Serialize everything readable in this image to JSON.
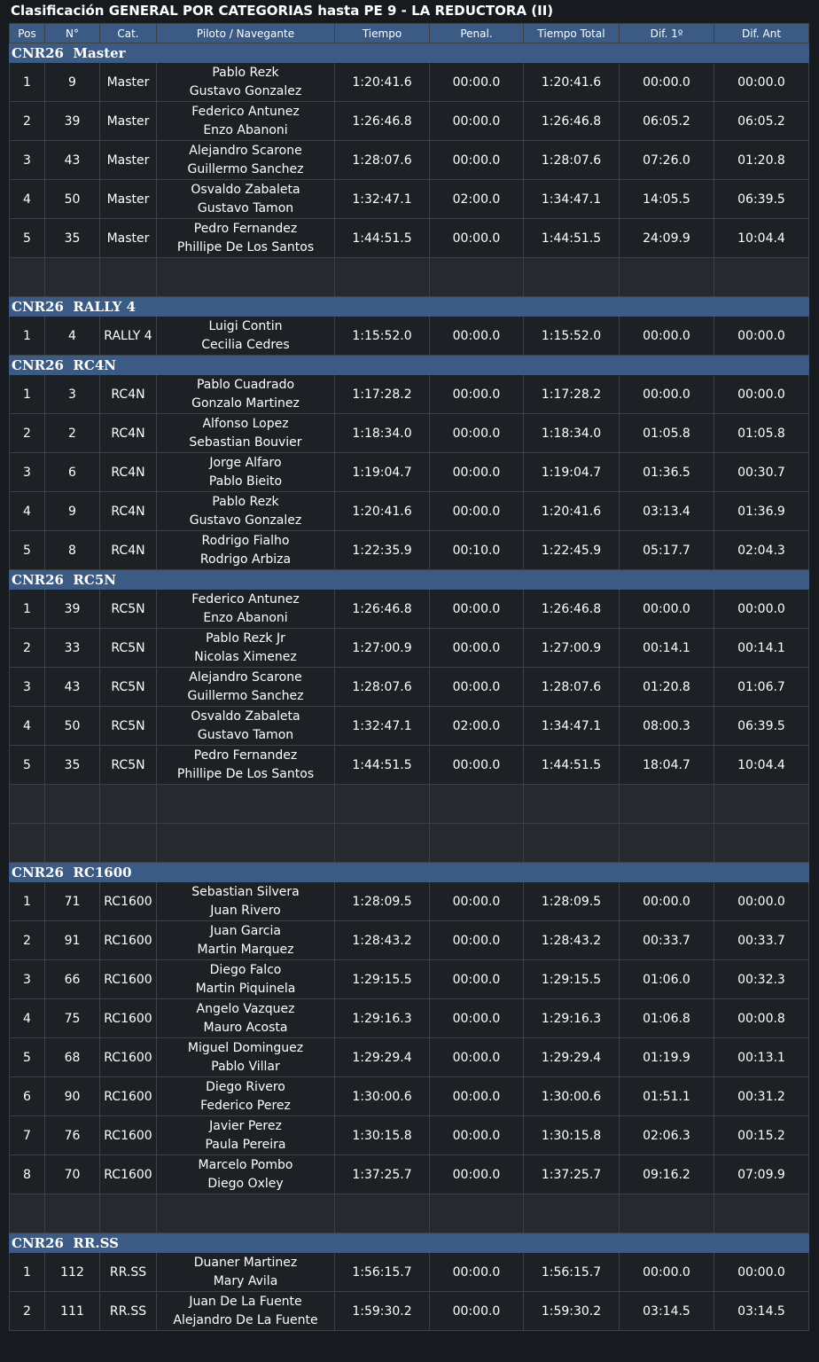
{
  "title": "Clasificación GENERAL POR CATEGORIAS hasta PE 9 - LA REDUCTORA (II)",
  "columns": [
    "Pos",
    "N°",
    "Cat.",
    "Piloto / Navegante",
    "Tiempo",
    "Penal.",
    "Tiempo Total",
    "Dif. 1º",
    "Dif. Ant"
  ],
  "categories": [
    {
      "name": "CNR26  Master",
      "blank_rows": 1,
      "rows": [
        {
          "pos": "1",
          "num": "9",
          "cat": "Master",
          "driver": "Pablo Rezk",
          "navigator": "Gustavo Gonzalez",
          "time": "1:20:41.6",
          "penalty": "00:00.0",
          "total": "1:20:41.6",
          "dif_first": "00:00.0",
          "dif_prev": "00:00.0"
        },
        {
          "pos": "2",
          "num": "39",
          "cat": "Master",
          "driver": "Federico Antunez",
          "navigator": "Enzo Abanoni",
          "time": "1:26:46.8",
          "penalty": "00:00.0",
          "total": "1:26:46.8",
          "dif_first": "06:05.2",
          "dif_prev": "06:05.2"
        },
        {
          "pos": "3",
          "num": "43",
          "cat": "Master",
          "driver": "Alejandro Scarone",
          "navigator": "Guillermo Sanchez",
          "time": "1:28:07.6",
          "penalty": "00:00.0",
          "total": "1:28:07.6",
          "dif_first": "07:26.0",
          "dif_prev": "01:20.8"
        },
        {
          "pos": "4",
          "num": "50",
          "cat": "Master",
          "driver": "Osvaldo Zabaleta",
          "navigator": "Gustavo Tamon",
          "time": "1:32:47.1",
          "penalty": "02:00.0",
          "total": "1:34:47.1",
          "dif_first": "14:05.5",
          "dif_prev": "06:39.5"
        },
        {
          "pos": "5",
          "num": "35",
          "cat": "Master",
          "driver": "Pedro Fernandez",
          "navigator": "Phillipe De Los Santos",
          "time": "1:44:51.5",
          "penalty": "00:00.0",
          "total": "1:44:51.5",
          "dif_first": "24:09.9",
          "dif_prev": "10:04.4"
        }
      ]
    },
    {
      "name": "CNR26  RALLY 4",
      "blank_rows": 0,
      "rows": [
        {
          "pos": "1",
          "num": "4",
          "cat": "RALLY 4",
          "driver": "Luigi Contin",
          "navigator": "Cecilia Cedres",
          "time": "1:15:52.0",
          "penalty": "00:00.0",
          "total": "1:15:52.0",
          "dif_first": "00:00.0",
          "dif_prev": "00:00.0"
        }
      ]
    },
    {
      "name": "CNR26  RC4N",
      "blank_rows": 0,
      "rows": [
        {
          "pos": "1",
          "num": "3",
          "cat": "RC4N",
          "driver": "Pablo Cuadrado",
          "navigator": "Gonzalo Martinez",
          "time": "1:17:28.2",
          "penalty": "00:00.0",
          "total": "1:17:28.2",
          "dif_first": "00:00.0",
          "dif_prev": "00:00.0"
        },
        {
          "pos": "2",
          "num": "2",
          "cat": "RC4N",
          "driver": "Alfonso Lopez",
          "navigator": "Sebastian Bouvier",
          "time": "1:18:34.0",
          "penalty": "00:00.0",
          "total": "1:18:34.0",
          "dif_first": "01:05.8",
          "dif_prev": "01:05.8"
        },
        {
          "pos": "3",
          "num": "6",
          "cat": "RC4N",
          "driver": "Jorge Alfaro",
          "navigator": "Pablo Bieito",
          "time": "1:19:04.7",
          "penalty": "00:00.0",
          "total": "1:19:04.7",
          "dif_first": "01:36.5",
          "dif_prev": "00:30.7"
        },
        {
          "pos": "4",
          "num": "9",
          "cat": "RC4N",
          "driver": "Pablo Rezk",
          "navigator": "Gustavo Gonzalez",
          "time": "1:20:41.6",
          "penalty": "00:00.0",
          "total": "1:20:41.6",
          "dif_first": "03:13.4",
          "dif_prev": "01:36.9"
        },
        {
          "pos": "5",
          "num": "8",
          "cat": "RC4N",
          "driver": "Rodrigo Fialho",
          "navigator": "Rodrigo Arbiza",
          "time": "1:22:35.9",
          "penalty": "00:10.0",
          "total": "1:22:45.9",
          "dif_first": "05:17.7",
          "dif_prev": "02:04.3"
        }
      ]
    },
    {
      "name": "CNR26  RC5N",
      "blank_rows": 2,
      "rows": [
        {
          "pos": "1",
          "num": "39",
          "cat": "RC5N",
          "driver": "Federico Antunez",
          "navigator": "Enzo Abanoni",
          "time": "1:26:46.8",
          "penalty": "00:00.0",
          "total": "1:26:46.8",
          "dif_first": "00:00.0",
          "dif_prev": "00:00.0"
        },
        {
          "pos": "2",
          "num": "33",
          "cat": "RC5N",
          "driver": "Pablo Rezk Jr",
          "navigator": "Nicolas Ximenez",
          "time": "1:27:00.9",
          "penalty": "00:00.0",
          "total": "1:27:00.9",
          "dif_first": "00:14.1",
          "dif_prev": "00:14.1"
        },
        {
          "pos": "3",
          "num": "43",
          "cat": "RC5N",
          "driver": "Alejandro Scarone",
          "navigator": "Guillermo Sanchez",
          "time": "1:28:07.6",
          "penalty": "00:00.0",
          "total": "1:28:07.6",
          "dif_first": "01:20.8",
          "dif_prev": "01:06.7"
        },
        {
          "pos": "4",
          "num": "50",
          "cat": "RC5N",
          "driver": "Osvaldo Zabaleta",
          "navigator": "Gustavo Tamon",
          "time": "1:32:47.1",
          "penalty": "02:00.0",
          "total": "1:34:47.1",
          "dif_first": "08:00.3",
          "dif_prev": "06:39.5"
        },
        {
          "pos": "5",
          "num": "35",
          "cat": "RC5N",
          "driver": "Pedro Fernandez",
          "navigator": "Phillipe De Los Santos",
          "time": "1:44:51.5",
          "penalty": "00:00.0",
          "total": "1:44:51.5",
          "dif_first": "18:04.7",
          "dif_prev": "10:04.4"
        }
      ]
    },
    {
      "name": "CNR26  RC1600",
      "blank_rows": 1,
      "rows": [
        {
          "pos": "1",
          "num": "71",
          "cat": "RC1600",
          "driver": "Sebastian Silvera",
          "navigator": "Juan Rivero",
          "time": "1:28:09.5",
          "penalty": "00:00.0",
          "total": "1:28:09.5",
          "dif_first": "00:00.0",
          "dif_prev": "00:00.0"
        },
        {
          "pos": "2",
          "num": "91",
          "cat": "RC1600",
          "driver": "Juan Garcia",
          "navigator": "Martin Marquez",
          "time": "1:28:43.2",
          "penalty": "00:00.0",
          "total": "1:28:43.2",
          "dif_first": "00:33.7",
          "dif_prev": "00:33.7"
        },
        {
          "pos": "3",
          "num": "66",
          "cat": "RC1600",
          "driver": "Diego Falco",
          "navigator": "Martin Piquinela",
          "time": "1:29:15.5",
          "penalty": "00:00.0",
          "total": "1:29:15.5",
          "dif_first": "01:06.0",
          "dif_prev": "00:32.3"
        },
        {
          "pos": "4",
          "num": "75",
          "cat": "RC1600",
          "driver": "Angelo Vazquez",
          "navigator": "Mauro Acosta",
          "time": "1:29:16.3",
          "penalty": "00:00.0",
          "total": "1:29:16.3",
          "dif_first": "01:06.8",
          "dif_prev": "00:00.8"
        },
        {
          "pos": "5",
          "num": "68",
          "cat": "RC1600",
          "driver": "Miguel Dominguez",
          "navigator": "Pablo Villar",
          "time": "1:29:29.4",
          "penalty": "00:00.0",
          "total": "1:29:29.4",
          "dif_first": "01:19.9",
          "dif_prev": "00:13.1"
        },
        {
          "pos": "6",
          "num": "90",
          "cat": "RC1600",
          "driver": "Diego Rivero",
          "navigator": "Federico Perez",
          "time": "1:30:00.6",
          "penalty": "00:00.0",
          "total": "1:30:00.6",
          "dif_first": "01:51.1",
          "dif_prev": "00:31.2"
        },
        {
          "pos": "7",
          "num": "76",
          "cat": "RC1600",
          "driver": "Javier Perez",
          "navigator": "Paula Pereira",
          "time": "1:30:15.8",
          "penalty": "00:00.0",
          "total": "1:30:15.8",
          "dif_first": "02:06.3",
          "dif_prev": "00:15.2"
        },
        {
          "pos": "8",
          "num": "70",
          "cat": "RC1600",
          "driver": "Marcelo Pombo",
          "navigator": "Diego Oxley",
          "time": "1:37:25.7",
          "penalty": "00:00.0",
          "total": "1:37:25.7",
          "dif_first": "09:16.2",
          "dif_prev": "07:09.9"
        }
      ]
    },
    {
      "name": "CNR26  RR.SS",
      "blank_rows": 0,
      "rows": [
        {
          "pos": "1",
          "num": "112",
          "cat": "RR.SS",
          "driver": "Duaner Martinez",
          "navigator": "Mary Avila",
          "time": "1:56:15.7",
          "penalty": "00:00.0",
          "total": "1:56:15.7",
          "dif_first": "00:00.0",
          "dif_prev": "00:00.0"
        },
        {
          "pos": "2",
          "num": "111",
          "cat": "RR.SS",
          "driver": "Juan De La Fuente",
          "navigator": "Alejandro De La Fuente",
          "time": "1:59:30.2",
          "penalty": "00:00.0",
          "total": "1:59:30.2",
          "dif_first": "03:14.5",
          "dif_prev": "03:14.5"
        }
      ]
    }
  ]
}
